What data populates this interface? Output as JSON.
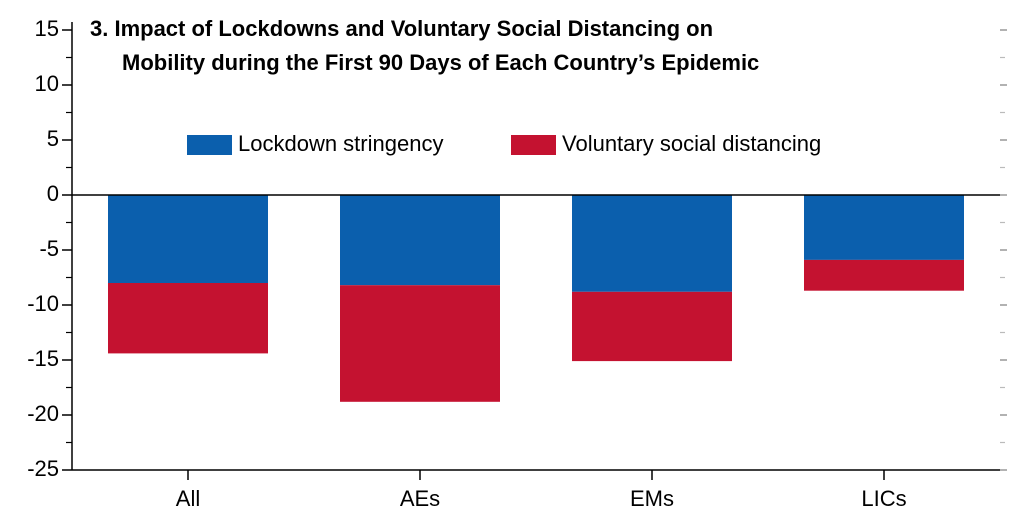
{
  "chart_data": {
    "type": "stacked_bar",
    "title": [
      "3. Impact of Lockdowns and Voluntary Social Distancing on",
      "Mobility during the First 90 Days of Each Country’s Epidemic"
    ],
    "categories": [
      "All",
      "AEs",
      "EMs",
      "LICs"
    ],
    "series": [
      {
        "name": "Lockdown stringency",
        "color": "#0b5fad",
        "values": [
          -8.0,
          -8.2,
          -8.8,
          -5.9
        ]
      },
      {
        "name": "Voluntary social distancing",
        "color": "#c41230",
        "values": [
          -6.4,
          -10.6,
          -6.3,
          -2.8
        ]
      }
    ],
    "ylim": [
      -25,
      15
    ],
    "yticks": [
      15,
      10,
      5,
      0,
      -5,
      -10,
      -15,
      -20,
      -25
    ],
    "minor_yticks": [
      12.5,
      7.5,
      2.5,
      -2.5,
      -7.5,
      -12.5,
      -17.5,
      -22.5
    ],
    "legend": "top"
  }
}
